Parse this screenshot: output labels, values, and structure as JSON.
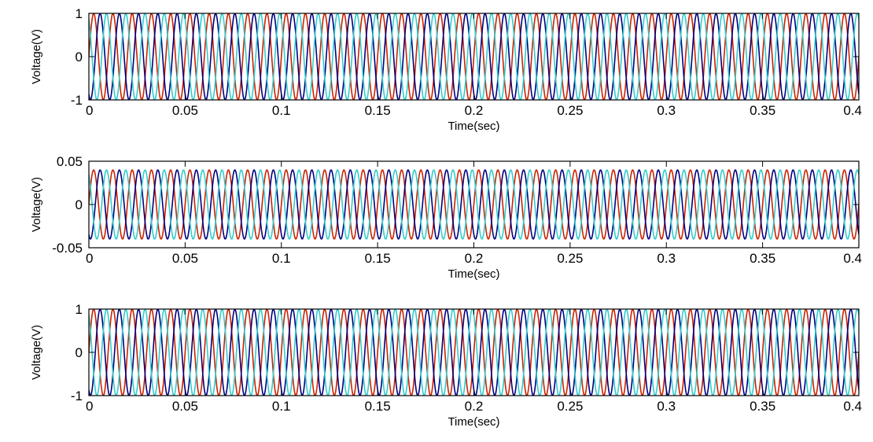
{
  "chart_data": [
    {
      "type": "line",
      "title": "",
      "xlabel": "Time(sec)",
      "ylabel": "Voltage(V)",
      "xlim": [
        0,
        0.4
      ],
      "ylim": [
        -1,
        1
      ],
      "xticks": [
        0,
        0.05,
        0.1,
        0.15,
        0.2,
        0.25,
        0.3,
        0.35,
        0.4
      ],
      "xtick_labels": [
        "0",
        "0.05",
        "0.1",
        "0.15",
        "0.2",
        "0.25",
        "0.3",
        "0.35",
        "0.4"
      ],
      "yticks": [
        -1,
        0,
        1
      ],
      "ytick_labels": [
        "-1",
        "0",
        "1"
      ],
      "grid": false,
      "waveform": {
        "kind": "sine",
        "amplitude": 1,
        "frequency_hz": 100
      },
      "series": [
        {
          "phase_deg": 0,
          "color": "#cc2200",
          "values_at_xticks": [
            0,
            0,
            0,
            0,
            0,
            0,
            0,
            0,
            0
          ]
        },
        {
          "phase_deg": -120,
          "color": "#000080",
          "values_at_xticks": [
            -0.87,
            -0.87,
            -0.87,
            -0.87,
            -0.87,
            -0.87,
            -0.87,
            -0.87,
            -0.87
          ]
        },
        {
          "phase_deg": 120,
          "color": "#33cccc",
          "values_at_xticks": [
            0.87,
            0.87,
            0.87,
            0.87,
            0.87,
            0.87,
            0.87,
            0.87,
            0.87
          ]
        }
      ]
    },
    {
      "type": "line",
      "title": "",
      "xlabel": "Time(sec)",
      "ylabel": "Voltage(V)",
      "xlim": [
        0,
        0.4
      ],
      "ylim": [
        -0.05,
        0.05
      ],
      "xticks": [
        0,
        0.05,
        0.1,
        0.15,
        0.2,
        0.25,
        0.3,
        0.35,
        0.4
      ],
      "xtick_labels": [
        "0",
        "0.05",
        "0.1",
        "0.15",
        "0.2",
        "0.25",
        "0.3",
        "0.35",
        "0.4"
      ],
      "yticks": [
        -0.05,
        0,
        0.05
      ],
      "ytick_labels": [
        "-0.05",
        "0",
        "0.05"
      ],
      "grid": false,
      "waveform": {
        "kind": "sine",
        "amplitude": 0.04,
        "frequency_hz": 100
      },
      "series": [
        {
          "phase_deg": 0,
          "color": "#cc2200",
          "values_at_xticks": [
            0,
            0,
            0,
            0,
            0,
            0,
            0,
            0,
            0
          ]
        },
        {
          "phase_deg": -120,
          "color": "#000080",
          "values_at_xticks": [
            -0.035,
            -0.035,
            -0.035,
            -0.035,
            -0.035,
            -0.035,
            -0.035,
            -0.035,
            -0.035
          ]
        },
        {
          "phase_deg": 120,
          "color": "#33cccc",
          "values_at_xticks": [
            0.035,
            0.035,
            0.035,
            0.035,
            0.035,
            0.035,
            0.035,
            0.035,
            0.035
          ]
        }
      ]
    },
    {
      "type": "line",
      "title": "",
      "xlabel": "Time(sec)",
      "ylabel": "Voltage(V)",
      "xlim": [
        0,
        0.4
      ],
      "ylim": [
        -1,
        1
      ],
      "xticks": [
        0,
        0.05,
        0.1,
        0.15,
        0.2,
        0.25,
        0.3,
        0.35,
        0.4
      ],
      "xtick_labels": [
        "0",
        "0.05",
        "0.1",
        "0.15",
        "0.2",
        "0.25",
        "0.3",
        "0.35",
        "0.4"
      ],
      "yticks": [
        -1,
        0,
        1
      ],
      "ytick_labels": [
        "-1",
        "0",
        "1"
      ],
      "grid": false,
      "waveform": {
        "kind": "sine",
        "amplitude": 1,
        "frequency_hz": 100
      },
      "series": [
        {
          "phase_deg": 0,
          "color": "#cc2200",
          "values_at_xticks": [
            0,
            0,
            0,
            0,
            0,
            0,
            0,
            0,
            0
          ]
        },
        {
          "phase_deg": -120,
          "color": "#000080",
          "values_at_xticks": [
            -0.87,
            -0.87,
            -0.87,
            -0.87,
            -0.87,
            -0.87,
            -0.87,
            -0.87,
            -0.87
          ]
        },
        {
          "phase_deg": 120,
          "color": "#33cccc",
          "values_at_xticks": [
            0.87,
            0.87,
            0.87,
            0.87,
            0.87,
            0.87,
            0.87,
            0.87,
            0.87
          ]
        }
      ]
    }
  ]
}
